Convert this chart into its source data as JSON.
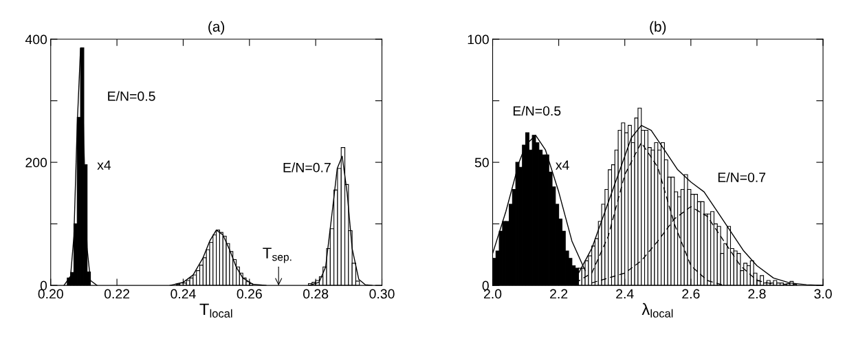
{
  "chart_data": [
    {
      "type": "histogram",
      "title": "(a)",
      "xlabel": "T$_{local}$",
      "xlim": [
        0.2,
        0.3
      ],
      "xticks": [
        {
          "value": 0.2,
          "label": "0.20"
        },
        {
          "value": 0.22,
          "label": "0.22"
        },
        {
          "value": 0.24,
          "label": "0.24"
        },
        {
          "value": 0.26,
          "label": "0.26"
        },
        {
          "value": 0.28,
          "label": "0.28"
        },
        {
          "value": 0.3,
          "label": "0.30"
        }
      ],
      "ylim": [
        0,
        400
      ],
      "yticks": [
        0,
        {
          "value": 100,
          "label": null
        },
        200,
        {
          "value": 300,
          "label": null
        },
        400
      ],
      "grid": false,
      "legend": false,
      "annotations": [
        "E/N=0.5",
        "x4",
        "E/N=0.7",
        "T$_{sep.}$"
      ],
      "series": [
        {
          "type": "histogram",
          "color": "#000000",
          "bins": [
            0.205,
            0.206,
            0.207,
            0.208,
            0.209,
            0.21,
            0.211,
            0.212
          ],
          "values": [
            12,
            21,
            100,
            273,
            386,
            196,
            22
          ]
        },
        {
          "type": "histogram",
          "color": "#ffffff",
          "bins": [
            0.238,
            0.239,
            0.24,
            0.241,
            0.242,
            0.243,
            0.244,
            0.245,
            0.246,
            0.247,
            0.248,
            0.249,
            0.25,
            0.251,
            0.252,
            0.253,
            0.254,
            0.255,
            0.256,
            0.257,
            0.258,
            0.259,
            0.26,
            0.261
          ],
          "values": [
            2,
            4,
            4,
            8,
            12,
            17,
            24,
            33,
            45,
            58,
            70,
            82,
            90,
            86,
            80,
            68,
            55,
            42,
            30,
            20,
            12,
            6,
            3
          ]
        },
        {
          "type": "histogram",
          "color": "#ffffff",
          "bins": [
            0.2778,
            0.2789,
            0.28,
            0.2811,
            0.2822,
            0.2833,
            0.2844,
            0.2855,
            0.2866,
            0.2877,
            0.2888,
            0.2899,
            0.291,
            0.2921,
            0.2932
          ],
          "values": [
            3,
            5,
            8,
            14,
            30,
            60,
            92,
            155,
            190,
            224,
            164,
            89,
            36,
            7
          ]
        },
        {
          "type": "line",
          "color": "#000000",
          "line_style": "solid",
          "x": [
            0.204,
            0.206,
            0.207,
            0.208,
            0.209,
            0.2095,
            0.21,
            0.211,
            0.212,
            0.214
          ],
          "values": [
            0,
            15,
            80,
            260,
            385,
            370,
            230,
            60,
            8,
            0
          ]
        },
        {
          "type": "line",
          "color": "#000000",
          "line_style": "solid",
          "x": [
            0.236,
            0.24,
            0.243,
            0.246,
            0.248,
            0.25,
            0.252,
            0.254,
            0.256,
            0.258,
            0.261,
            0.265
          ],
          "values": [
            0,
            5,
            17,
            45,
            72,
            90,
            82,
            58,
            30,
            12,
            2,
            0
          ]
        },
        {
          "type": "line",
          "color": "#000000",
          "line_style": "solid",
          "x": [
            0.278,
            0.281,
            0.283,
            0.285,
            0.2865,
            0.288,
            0.2895,
            0.291,
            0.293,
            0.295,
            0.297
          ],
          "values": [
            0,
            5,
            30,
            120,
            190,
            210,
            150,
            60,
            10,
            1,
            0
          ]
        }
      ]
    },
    {
      "type": "histogram",
      "title": "(b)",
      "xlabel": "λ$_{local}$",
      "xlim": [
        2.0,
        3.0
      ],
      "xticks": [
        {
          "value": 2.0,
          "label": "2.0"
        },
        {
          "value": 2.2,
          "label": "2.2"
        },
        {
          "value": 2.4,
          "label": "2.4"
        },
        {
          "value": 2.6,
          "label": "2.6"
        },
        {
          "value": 2.8,
          "label": "2.8"
        },
        {
          "value": 3.0,
          "label": "3.0"
        }
      ],
      "ylim": [
        0,
        100
      ],
      "yticks": [
        0,
        {
          "value": 25,
          "label": null
        },
        50,
        {
          "value": 75,
          "label": null
        },
        100
      ],
      "grid": false,
      "legend": false,
      "annotations": [
        "E/N=0.5",
        "x4",
        "E/N=0.7"
      ],
      "series": [
        {
          "type": "histogram",
          "color": "#000000",
          "bins": [
            2.0,
            2.01,
            2.02,
            2.03,
            2.04,
            2.05,
            2.06,
            2.07,
            2.08,
            2.09,
            2.1,
            2.11,
            2.12,
            2.13,
            2.14,
            2.15,
            2.16,
            2.17,
            2.18,
            2.19,
            2.2,
            2.21,
            2.22,
            2.23,
            2.24,
            2.25,
            2.26
          ],
          "values": [
            11,
            14,
            22,
            26,
            26,
            33,
            39,
            50,
            48,
            57,
            62,
            55,
            61,
            58,
            55,
            53,
            53,
            46,
            40,
            33,
            27,
            22,
            14,
            11,
            8,
            7
          ]
        },
        {
          "type": "histogram",
          "color": "#ffffff",
          "bins": [
            2.26,
            2.27,
            2.28,
            2.29,
            2.3,
            2.31,
            2.32,
            2.33,
            2.34,
            2.35,
            2.36,
            2.37,
            2.38,
            2.39,
            2.4,
            2.41,
            2.42,
            2.43,
            2.44,
            2.45,
            2.46,
            2.47,
            2.48,
            2.49,
            2.5,
            2.51,
            2.52,
            2.53,
            2.54,
            2.55,
            2.56,
            2.57,
            2.58,
            2.59,
            2.6,
            2.61,
            2.62,
            2.63,
            2.64,
            2.65,
            2.66,
            2.67,
            2.68,
            2.69,
            2.7,
            2.71,
            2.72,
            2.73,
            2.74,
            2.75,
            2.76,
            2.77,
            2.78,
            2.79,
            2.8,
            2.81,
            2.82,
            2.83,
            2.84,
            2.85,
            2.86,
            2.87,
            2.88,
            2.89,
            2.9,
            2.91,
            2.92
          ],
          "values": [
            7,
            7,
            10,
            12,
            16,
            19,
            26,
            33,
            39,
            47,
            49,
            55,
            63,
            66,
            62,
            65,
            58,
            68,
            72,
            63,
            63,
            56,
            55,
            58,
            55,
            58,
            51,
            44,
            44,
            38,
            36,
            39,
            45,
            39,
            37,
            37,
            34,
            34,
            29,
            29,
            30,
            25,
            24,
            13,
            17,
            24,
            15,
            14,
            13,
            6,
            9,
            8,
            10,
            5,
            2,
            4,
            1,
            2,
            1,
            2,
            1,
            1,
            0.5,
            0.7,
            1.6,
            0.5
          ]
        },
        {
          "type": "line",
          "color": "#000000",
          "line_style": "solid",
          "x": [
            2.0,
            2.04,
            2.08,
            2.1,
            2.13,
            2.16,
            2.2,
            2.24,
            2.28
          ],
          "values": [
            13,
            30,
            50,
            57,
            61,
            55,
            38,
            18,
            6
          ]
        },
        {
          "type": "line",
          "color": "#000000",
          "line_style": "solid",
          "x": [
            2.26,
            2.3,
            2.34,
            2.38,
            2.42,
            2.45,
            2.48,
            2.52,
            2.56,
            2.6,
            2.64,
            2.68,
            2.72,
            2.76,
            2.8,
            2.85,
            2.9,
            2.95,
            3.0
          ],
          "values": [
            5,
            15,
            30,
            45,
            60,
            65,
            63,
            55,
            47,
            42,
            38,
            30,
            22,
            14,
            8,
            3,
            1,
            0.3,
            0
          ]
        },
        {
          "type": "line",
          "color": "#000000",
          "line_style": "dashed",
          "x": [
            2.25,
            2.3,
            2.35,
            2.4,
            2.45,
            2.5,
            2.55,
            2.6,
            2.65,
            2.7
          ],
          "values": [
            1,
            5,
            20,
            45,
            58,
            48,
            25,
            8,
            2,
            0
          ]
        },
        {
          "type": "line",
          "color": "#000000",
          "line_style": "dashed",
          "x": [
            2.3,
            2.4,
            2.45,
            2.5,
            2.55,
            2.6,
            2.65,
            2.7,
            2.75,
            2.8,
            2.85
          ],
          "values": [
            1,
            5,
            10,
            18,
            27,
            32,
            28,
            18,
            8,
            2,
            0.5
          ]
        }
      ]
    }
  ]
}
